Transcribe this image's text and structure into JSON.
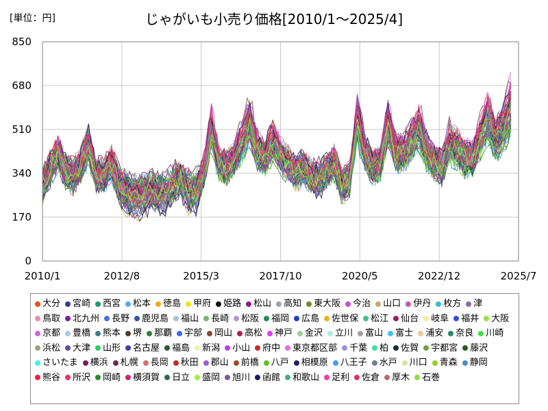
{
  "chart_data": {
    "type": "line",
    "title": "じゃがいも小売り価格[2010/1～2025/4]",
    "unit_label": "[単位：円]",
    "y_ticks": [
      0,
      170,
      340,
      510,
      680,
      850
    ],
    "ylim": [
      0,
      850
    ],
    "x_ticks": [
      "2010/1",
      "2012/8",
      "2015/3",
      "2017/10",
      "2020/5",
      "2022/12",
      "2025/7"
    ],
    "x_range": [
      "2010/1",
      "2025/7"
    ],
    "x_last": "2025/4",
    "grid": true,
    "legend_position": "bottom",
    "average_profile": [
      [
        "2010/1",
        300
      ],
      [
        "2010/4",
        360
      ],
      [
        "2010/7",
        420
      ],
      [
        "2010/10",
        350
      ],
      [
        "2011/1",
        330
      ],
      [
        "2011/4",
        370
      ],
      [
        "2011/7",
        450
      ],
      [
        "2011/10",
        340
      ],
      [
        "2012/1",
        330
      ],
      [
        "2012/4",
        380
      ],
      [
        "2012/7",
        300
      ],
      [
        "2012/10",
        260
      ],
      [
        "2013/1",
        250
      ],
      [
        "2013/4",
        260
      ],
      [
        "2013/7",
        270
      ],
      [
        "2013/10",
        265
      ],
      [
        "2014/1",
        265
      ],
      [
        "2014/4",
        300
      ],
      [
        "2014/7",
        320
      ],
      [
        "2014/10",
        270
      ],
      [
        "2015/1",
        270
      ],
      [
        "2015/4",
        340
      ],
      [
        "2015/7",
        520
      ],
      [
        "2015/10",
        380
      ],
      [
        "2016/1",
        360
      ],
      [
        "2016/4",
        400
      ],
      [
        "2016/7",
        470
      ],
      [
        "2016/10",
        540
      ],
      [
        "2017/1",
        430
      ],
      [
        "2017/4",
        400
      ],
      [
        "2017/7",
        470
      ],
      [
        "2017/10",
        410
      ],
      [
        "2018/1",
        380
      ],
      [
        "2018/4",
        340
      ],
      [
        "2018/7",
        370
      ],
      [
        "2018/10",
        320
      ],
      [
        "2019/1",
        320
      ],
      [
        "2019/4",
        350
      ],
      [
        "2019/7",
        380
      ],
      [
        "2019/10",
        300
      ],
      [
        "2020/1",
        320
      ],
      [
        "2020/4",
        560
      ],
      [
        "2020/7",
        420
      ],
      [
        "2020/10",
        370
      ],
      [
        "2021/1",
        380
      ],
      [
        "2021/4",
        530
      ],
      [
        "2021/7",
        420
      ],
      [
        "2021/10",
        420
      ],
      [
        "2022/1",
        460
      ],
      [
        "2022/4",
        520
      ],
      [
        "2022/7",
        430
      ],
      [
        "2022/10",
        390
      ],
      [
        "2023/1",
        360
      ],
      [
        "2023/4",
        460
      ],
      [
        "2023/7",
        440
      ],
      [
        "2023/10",
        400
      ],
      [
        "2024/1",
        400
      ],
      [
        "2024/4",
        480
      ],
      [
        "2024/7",
        560
      ],
      [
        "2024/10",
        470
      ],
      [
        "2025/1",
        520
      ],
      [
        "2025/4",
        600
      ]
    ],
    "series": [
      {
        "name": "大分",
        "color": "#e8501c"
      },
      {
        "name": "宮崎",
        "color": "#2f3f8f"
      },
      {
        "name": "西宮",
        "color": "#1a9c6a"
      },
      {
        "name": "松本",
        "color": "#5aa9e6"
      },
      {
        "name": "徳島",
        "color": "#f2a81d"
      },
      {
        "name": "甲府",
        "color": "#f7e017"
      },
      {
        "name": "姫路",
        "color": "#111111"
      },
      {
        "name": "松山",
        "color": "#8a1d8a"
      },
      {
        "name": "高知",
        "color": "#9aa2b0"
      },
      {
        "name": "東大阪",
        "color": "#6b8e23"
      },
      {
        "name": "今治",
        "color": "#c44fd8"
      },
      {
        "name": "山口",
        "color": "#c8a86a"
      },
      {
        "name": "伊丹",
        "color": "#c05aa8"
      },
      {
        "name": "枚方",
        "color": "#3fb8d6"
      },
      {
        "name": "津",
        "color": "#8e6a9e"
      },
      {
        "name": "鳥取",
        "color": "#f089b0"
      },
      {
        "name": "北九州",
        "color": "#7a1fa0"
      },
      {
        "name": "長野",
        "color": "#4a6fd8"
      },
      {
        "name": "鹿児島",
        "color": "#3c4fa8"
      },
      {
        "name": "福山",
        "color": "#a9c4d8"
      },
      {
        "name": "長崎",
        "color": "#7fb07a"
      },
      {
        "name": "松阪",
        "color": "#b098d0"
      },
      {
        "name": "福岡",
        "color": "#1f8a4a"
      },
      {
        "name": "広島",
        "color": "#1f3fd0"
      },
      {
        "name": "佐世保",
        "color": "#f0b020"
      },
      {
        "name": "松江",
        "color": "#3fbf8a"
      },
      {
        "name": "仙台",
        "color": "#9a1f5a"
      },
      {
        "name": "岐阜",
        "color": "#f5f0a0"
      },
      {
        "name": "福井",
        "color": "#2f4fe0"
      },
      {
        "name": "大阪",
        "color": "#9ae040"
      },
      {
        "name": "京都",
        "color": "#c86ad8"
      },
      {
        "name": "豊橋",
        "color": "#a8c8e8"
      },
      {
        "name": "熊本",
        "color": "#4a7a8a"
      },
      {
        "name": "堺",
        "color": "#5a3a2a"
      },
      {
        "name": "那覇",
        "color": "#3a7a3a"
      },
      {
        "name": "宇部",
        "color": "#3a6af0"
      },
      {
        "name": "岡山",
        "color": "#8a4a3a"
      },
      {
        "name": "高松",
        "color": "#b02050"
      },
      {
        "name": "神戸",
        "color": "#e040f0"
      },
      {
        "name": "金沢",
        "color": "#9ad090"
      },
      {
        "name": "立川",
        "color": "#a8f0e0"
      },
      {
        "name": "富山",
        "color": "#a0a0a0"
      },
      {
        "name": "富士",
        "color": "#40c0f0"
      },
      {
        "name": "浦安",
        "color": "#e8c8a0"
      },
      {
        "name": "奈良",
        "color": "#2a8a6a"
      },
      {
        "name": "川崎",
        "color": "#40e040"
      },
      {
        "name": "浜松",
        "color": "#a0a080"
      },
      {
        "name": "大津",
        "color": "#6a4a9a"
      },
      {
        "name": "山形",
        "color": "#2ad060"
      },
      {
        "name": "名古屋",
        "color": "#4040a0"
      },
      {
        "name": "福島",
        "color": "#2a5a2a"
      },
      {
        "name": "新潟",
        "color": "#f0f0b0"
      },
      {
        "name": "小山",
        "color": "#c040e0"
      },
      {
        "name": "府中",
        "color": "#c03020"
      },
      {
        "name": "東京都区部",
        "color": "#e070e0"
      },
      {
        "name": "千葉",
        "color": "#a090e0"
      },
      {
        "name": "柏",
        "color": "#40e0a0"
      },
      {
        "name": "佐賀",
        "color": "#1a2a3a"
      },
      {
        "name": "宇都宮",
        "color": "#70a040"
      },
      {
        "name": "藤沢",
        "color": "#2a5a1a"
      },
      {
        "name": "さいたま",
        "color": "#40f0f0"
      },
      {
        "name": "横浜",
        "color": "#7a1a5a"
      },
      {
        "name": "札幌",
        "color": "#6a2a4a"
      },
      {
        "name": "長岡",
        "color": "#d07070"
      },
      {
        "name": "秋田",
        "color": "#c02a2a"
      },
      {
        "name": "郡山",
        "color": "#9a60d0"
      },
      {
        "name": "前橋",
        "color": "#a04a2a"
      },
      {
        "name": "八戸",
        "color": "#60c020"
      },
      {
        "name": "相模原",
        "color": "#2a1a6a"
      },
      {
        "name": "八王子",
        "color": "#40a0f0"
      },
      {
        "name": "水戸",
        "color": "#708090"
      },
      {
        "name": "川口",
        "color": "#e0e0a0"
      },
      {
        "name": "青森",
        "color": "#90d020"
      },
      {
        "name": "静岡",
        "color": "#4a90c0"
      },
      {
        "name": "熊谷",
        "color": "#f02040"
      },
      {
        "name": "所沢",
        "color": "#f03060"
      },
      {
        "name": "岡崎",
        "color": "#2a8a2a"
      },
      {
        "name": "横須賀",
        "color": "#d02080"
      },
      {
        "name": "日立",
        "color": "#2a6a5a"
      },
      {
        "name": "盛岡",
        "color": "#a0f040"
      },
      {
        "name": "旭川",
        "color": "#7a5aa0"
      },
      {
        "name": "函館",
        "color": "#1a1a6a"
      },
      {
        "name": "和歌山",
        "color": "#40b080"
      },
      {
        "name": "足利",
        "color": "#f040a0"
      },
      {
        "name": "佐倉",
        "color": "#e03070"
      },
      {
        "name": "厚木",
        "color": "#c06a6a"
      },
      {
        "name": "石巻",
        "color": "#90e040"
      }
    ]
  }
}
